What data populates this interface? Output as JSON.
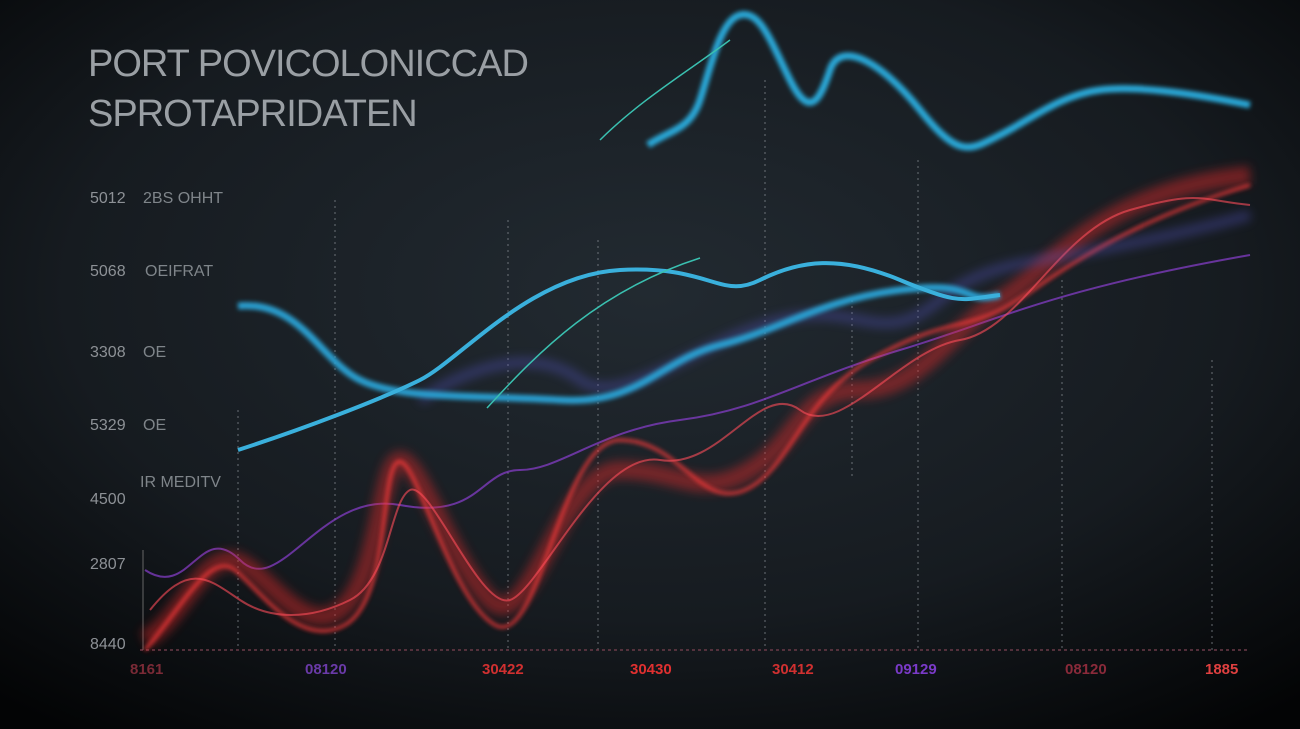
{
  "title": [
    "PORT POVICOLONICCAD",
    "SPROTAPRIDATEN"
  ],
  "y_labels": [
    "5012",
    "5068",
    "3308",
    "5329",
    "4500",
    "2807",
    "8440"
  ],
  "side_labels": [
    "2BS OHHT",
    "OEIFRAT",
    "OE",
    "OE",
    "IR MEDITV"
  ],
  "x_labels": [
    "8161",
    "08120",
    "30422",
    "30430",
    "30412",
    "09129",
    "08120",
    "1885"
  ]
}
